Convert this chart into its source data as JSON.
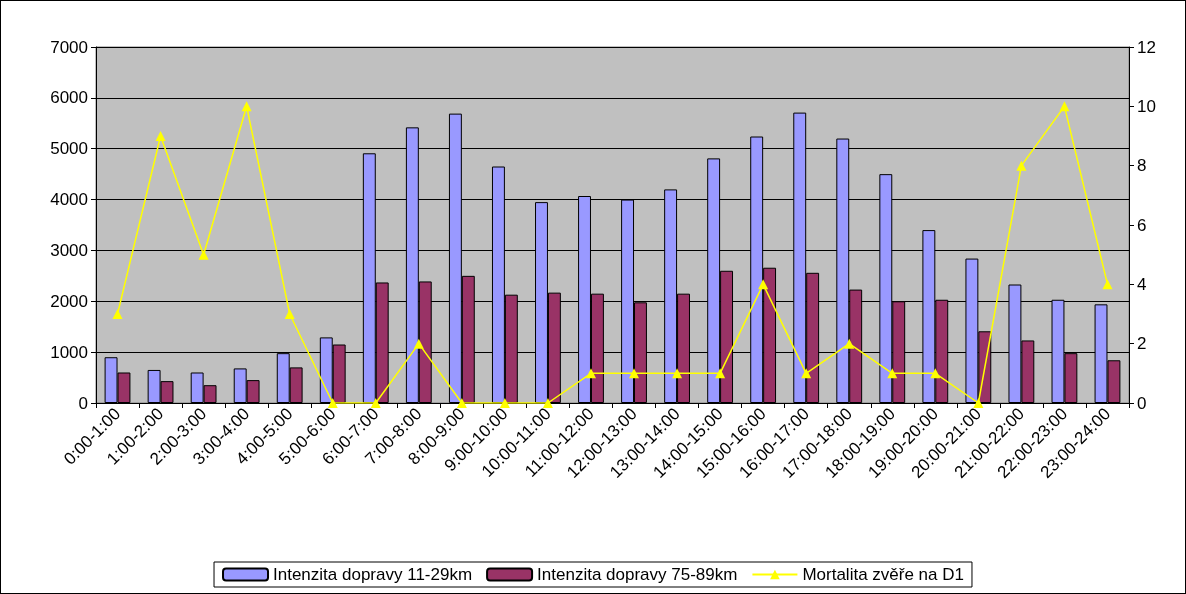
{
  "chart_data": {
    "type": "bar",
    "categories": [
      "0:00-1:00",
      "1:00-2:00",
      "2:00-3:00",
      "3:00-4:00",
      "4:00-5:00",
      "5:00-6:00",
      "6:00-7:00",
      "7:00-8:00",
      "8:00-9:00",
      "9:00-10:00",
      "10:00-11:00",
      "11:00-12:00",
      "12:00-13:00",
      "13:00-14:00",
      "14:00-15:00",
      "15:00-16:00",
      "16:00-17:00",
      "17:00-18:00",
      "18:00-19:00",
      "19:00-20:00",
      "20:00-21:00",
      "21:00-22:00",
      "22:00-23:00",
      "23:00-24:00"
    ],
    "series": [
      {
        "name": "Intenzita dopravy 11-29km",
        "color": "#9999ff",
        "values": [
          900,
          650,
          600,
          680,
          980,
          1290,
          4910,
          5420,
          5690,
          4650,
          3950,
          4070,
          4000,
          4200,
          4810,
          5240,
          5710,
          5200,
          4500,
          3400,
          2840,
          2330,
          2030,
          1940
        ]
      },
      {
        "name": "Intenzita dopravy 75-89km",
        "color": "#993366",
        "values": [
          600,
          430,
          350,
          450,
          700,
          1150,
          2370,
          2390,
          2500,
          2130,
          2170,
          2150,
          1980,
          2150,
          2600,
          2660,
          2560,
          2230,
          2000,
          2030,
          1410,
          1230,
          980,
          840
        ]
      },
      {
        "name": "Mortalita zvěře na D1",
        "type": "line",
        "axis": "y2",
        "color": "#ffff00",
        "marker": "triangle",
        "values": [
          3,
          9,
          5,
          10,
          3,
          0,
          0,
          2,
          0,
          0,
          0,
          1,
          1,
          1,
          1,
          4,
          1,
          2,
          1,
          1,
          0,
          8,
          10,
          4
        ]
      }
    ],
    "ylim": [
      0,
      7000
    ],
    "yticks": [
      0,
      1000,
      2000,
      3000,
      4000,
      5000,
      6000,
      7000
    ],
    "y2lim": [
      0,
      12
    ],
    "y2ticks": [
      0,
      2,
      4,
      6,
      8,
      10,
      12
    ],
    "grid": "y",
    "legend": "bottom"
  }
}
